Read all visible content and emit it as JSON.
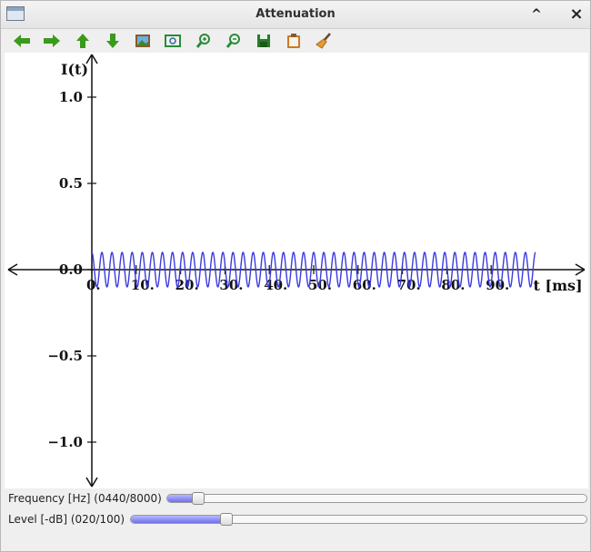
{
  "window": {
    "title": "Attenuation",
    "controls": {
      "minimize_label": "^",
      "close_label": "×"
    }
  },
  "toolbar": {
    "items": [
      {
        "name": "back-icon",
        "color": "#3a9a1c"
      },
      {
        "name": "forward-icon",
        "color": "#3a9a1c"
      },
      {
        "name": "up-icon",
        "color": "#3a9a1c"
      },
      {
        "name": "down-icon",
        "color": "#3a9a1c"
      },
      {
        "name": "image-icon",
        "color": "#8a5a2a"
      },
      {
        "name": "zoom-fit-icon",
        "color": "#2a8a3a"
      },
      {
        "name": "zoom-in-icon",
        "color": "#2a8a3a"
      },
      {
        "name": "zoom-out-icon",
        "color": "#2a8a3a"
      },
      {
        "name": "save-icon",
        "color": "#2a7a2a"
      },
      {
        "name": "clipboard-icon",
        "color": "#c87a2a"
      },
      {
        "name": "clear-brush-icon",
        "color": "#b06020"
      }
    ]
  },
  "chart_data": {
    "type": "line",
    "title": "",
    "xlabel": "t [ms]",
    "ylabel": "I(t)",
    "xlim": [
      0,
      100
    ],
    "ylim": [
      -1.25,
      1.25
    ],
    "x_ticks": [
      0,
      10,
      20,
      30,
      40,
      50,
      60,
      70,
      80,
      90
    ],
    "x_tick_labels": [
      "0.",
      "10.",
      "20.",
      "30.",
      "40.",
      "50.",
      "60.",
      "70.",
      "80.",
      "90."
    ],
    "y_ticks": [
      1.0,
      0.5,
      0.0,
      -0.5,
      -1.0
    ],
    "y_tick_labels": [
      "1.0",
      "0.5",
      "0.0",
      "−0.5",
      "−1.0"
    ],
    "series": [
      {
        "color": "#3a3ae0",
        "function": "sine",
        "amplitude": 0.1,
        "frequency_hz": 440,
        "t_range_ms": [
          0,
          100
        ]
      }
    ],
    "grid": false
  },
  "controls": {
    "frequency": {
      "label": "Frequency [Hz] (0440/8000)",
      "value": 440,
      "max": 8000
    },
    "level": {
      "label": "Level [-dB] (020/100)",
      "value": 20,
      "max": 100
    }
  }
}
